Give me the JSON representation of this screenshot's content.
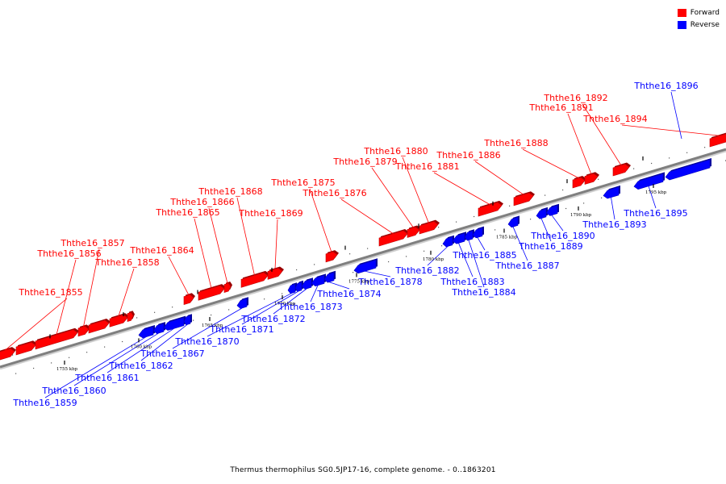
{
  "legend": [
    {
      "label": "Forward",
      "color": "#ff0000"
    },
    {
      "label": "Reverse",
      "color": "#0000ff"
    }
  ],
  "caption": "Thermus thermophilus SG0.5JP17-16, complete genome. - 0..1863201",
  "colors": {
    "forward": "#ff0000",
    "reverse": "#0000ff",
    "axis": "#7f7f7f"
  },
  "tick_labels": [
    "1755 kbp",
    "1760 kbp",
    "1765 kbp",
    "1770 kbp",
    "1775 kbp",
    "1780 kbp",
    "1785 kbp",
    "1790 kbp",
    "1795 kbp"
  ],
  "forward_genes": [
    "Ththe16_1855",
    "Ththe16_1856",
    "Ththe16_1857",
    "Ththe16_1858",
    "Ththe16_1864",
    "Ththe16_1865",
    "Ththe16_1866",
    "Ththe16_1868",
    "Ththe16_1869",
    "Ththe16_1875",
    "Ththe16_1876",
    "Ththe16_1879",
    "Ththe16_1880",
    "Ththe16_1881",
    "Ththe16_1886",
    "Ththe16_1888",
    "Ththe16_1891",
    "Ththe16_1892",
    "Ththe16_1894"
  ],
  "reverse_genes": [
    "Ththe16_1859",
    "Ththe16_1860",
    "Ththe16_1861",
    "Ththe16_1862",
    "Ththe16_1867",
    "Ththe16_1870",
    "Ththe16_1871",
    "Ththe16_1872",
    "Ththe16_1873",
    "Ththe16_1874",
    "Ththe16_1878",
    "Ththe16_1882",
    "Ththe16_1883",
    "Ththe16_1884",
    "Ththe16_1885",
    "Ththe16_1887",
    "Ththe16_1889",
    "Ththe16_1890",
    "Ththe16_1893",
    "Ththe16_1895",
    "Ththe16_1896"
  ]
}
